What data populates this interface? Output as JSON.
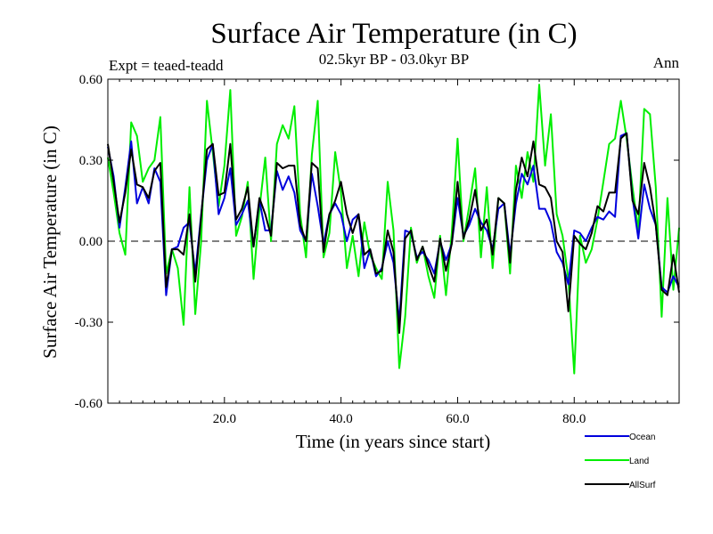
{
  "chart_data": {
    "type": "line",
    "title": "Surface Air Temperature (in C)",
    "expt_label": "Expt = teaed-teadd",
    "subtitle": "02.5kyr BP - 03.0kyr BP",
    "season_label": "Ann",
    "xlabel": "Time (in years since start)",
    "ylabel": "Surface Air Temperature (in C)",
    "xlim": [
      0,
      98
    ],
    "ylim": [
      -0.6,
      0.6
    ],
    "xticks": [
      {
        "value": 20,
        "label": "20.0"
      },
      {
        "value": 40,
        "label": "40.0"
      },
      {
        "value": 60,
        "label": "60.0"
      },
      {
        "value": 80,
        "label": "80.0"
      }
    ],
    "yticks": [
      {
        "value": 0.6,
        "label": "0.60"
      },
      {
        "value": 0.3,
        "label": "0.30"
      },
      {
        "value": 0.0,
        "label": "0.00"
      },
      {
        "value": -0.3,
        "label": "-0.30"
      },
      {
        "value": -0.6,
        "label": "-0.60"
      }
    ],
    "zero_line": {
      "value": 0.0,
      "style": "dashed"
    },
    "legend_position": "bottom-right",
    "x": [
      0,
      1,
      2,
      3,
      4,
      5,
      6,
      7,
      8,
      9,
      10,
      11,
      12,
      13,
      14,
      15,
      16,
      17,
      18,
      19,
      20,
      21,
      22,
      23,
      24,
      25,
      26,
      27,
      28,
      29,
      30,
      31,
      32,
      33,
      34,
      35,
      36,
      37,
      38,
      39,
      40,
      41,
      42,
      43,
      44,
      45,
      46,
      47,
      48,
      49,
      50,
      51,
      52,
      53,
      54,
      55,
      56,
      57,
      58,
      59,
      60,
      61,
      62,
      63,
      64,
      65,
      66,
      67,
      68,
      69,
      70,
      71,
      72,
      73,
      74,
      75,
      76,
      77,
      78,
      79,
      80,
      81,
      82,
      83,
      84,
      85,
      86,
      87,
      88,
      89,
      90,
      91,
      92,
      93,
      94,
      95,
      96,
      97,
      98
    ],
    "series": [
      {
        "name": "Land",
        "color": "#00ee00",
        "values": [
          0.31,
          0.18,
          0.03,
          -0.05,
          0.44,
          0.39,
          0.22,
          0.27,
          0.3,
          0.46,
          -0.12,
          -0.03,
          -0.1,
          -0.31,
          0.2,
          -0.27,
          0.0,
          0.52,
          0.33,
          0.13,
          0.28,
          0.56,
          0.02,
          0.09,
          0.22,
          -0.14,
          0.12,
          0.31,
          0.0,
          0.36,
          0.43,
          0.38,
          0.5,
          0.1,
          -0.06,
          0.32,
          0.52,
          -0.06,
          0.03,
          0.33,
          0.18,
          -0.1,
          0.02,
          -0.13,
          0.07,
          -0.05,
          -0.1,
          -0.14,
          0.22,
          0.04,
          -0.47,
          -0.28,
          0.05,
          -0.08,
          -0.02,
          -0.13,
          -0.21,
          0.02,
          -0.2,
          0.03,
          0.38,
          0.0,
          0.13,
          0.27,
          -0.06,
          0.2,
          -0.1,
          0.16,
          0.14,
          -0.12,
          0.28,
          0.16,
          0.33,
          0.22,
          0.58,
          0.28,
          0.47,
          0.1,
          0.02,
          -0.14,
          -0.49,
          0.02,
          -0.08,
          -0.03,
          0.08,
          0.22,
          0.36,
          0.38,
          0.52,
          0.38,
          0.2,
          0.04,
          0.49,
          0.47,
          0.2,
          -0.28,
          0.16,
          -0.18,
          0.05
        ]
      },
      {
        "name": "Ocean",
        "color": "#0000dd",
        "values": [
          0.35,
          0.24,
          0.05,
          0.2,
          0.37,
          0.14,
          0.2,
          0.14,
          0.27,
          0.22,
          -0.2,
          -0.03,
          -0.02,
          0.05,
          0.07,
          -0.12,
          0.1,
          0.3,
          0.36,
          0.1,
          0.16,
          0.27,
          0.06,
          0.1,
          0.15,
          -0.02,
          0.15,
          0.04,
          0.04,
          0.26,
          0.19,
          0.24,
          0.18,
          0.04,
          0.0,
          0.25,
          0.13,
          -0.01,
          0.1,
          0.14,
          0.1,
          0.0,
          0.08,
          0.1,
          -0.1,
          -0.03,
          -0.13,
          -0.1,
          0.0,
          -0.08,
          -0.3,
          0.04,
          0.03,
          -0.06,
          -0.04,
          -0.07,
          -0.12,
          0.0,
          -0.07,
          -0.01,
          0.16,
          0.02,
          0.06,
          0.12,
          0.07,
          0.04,
          -0.03,
          0.12,
          0.14,
          -0.05,
          0.14,
          0.25,
          0.21,
          0.28,
          0.12,
          0.12,
          0.07,
          -0.04,
          -0.08,
          -0.16,
          0.04,
          0.03,
          0.0,
          0.05,
          0.09,
          0.08,
          0.11,
          0.09,
          0.39,
          0.4,
          0.16,
          0.01,
          0.21,
          0.12,
          0.06,
          -0.17,
          -0.19,
          -0.13,
          -0.17
        ]
      },
      {
        "name": "AllSurf",
        "color": "#000000",
        "values": [
          0.36,
          0.22,
          0.07,
          0.18,
          0.34,
          0.21,
          0.2,
          0.16,
          0.26,
          0.29,
          -0.17,
          -0.03,
          -0.03,
          -0.05,
          0.1,
          -0.15,
          0.09,
          0.34,
          0.36,
          0.17,
          0.18,
          0.36,
          0.08,
          0.12,
          0.2,
          -0.02,
          0.16,
          0.1,
          0.02,
          0.29,
          0.27,
          0.28,
          0.28,
          0.06,
          0.0,
          0.29,
          0.27,
          -0.04,
          0.1,
          0.15,
          0.22,
          0.1,
          0.03,
          0.1,
          -0.05,
          -0.03,
          -0.12,
          -0.11,
          0.04,
          -0.04,
          -0.34,
          0.01,
          0.04,
          -0.07,
          -0.02,
          -0.09,
          -0.15,
          0.01,
          -0.11,
          -0.01,
          0.22,
          0.01,
          0.08,
          0.19,
          0.04,
          0.08,
          -0.05,
          0.16,
          0.14,
          -0.08,
          0.19,
          0.31,
          0.24,
          0.37,
          0.21,
          0.2,
          0.16,
          0.0,
          -0.04,
          -0.26,
          0.02,
          -0.01,
          -0.03,
          0.03,
          0.13,
          0.11,
          0.18,
          0.18,
          0.38,
          0.4,
          0.15,
          0.1,
          0.29,
          0.2,
          0.06,
          -0.18,
          -0.2,
          -0.05,
          -0.19
        ]
      }
    ]
  }
}
